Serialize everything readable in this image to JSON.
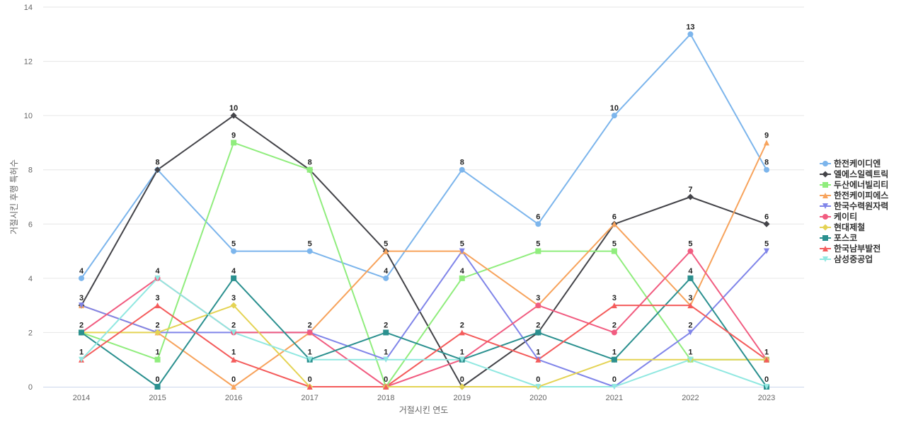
{
  "chart_data": {
    "type": "line",
    "title": "",
    "xlabel": "거절시킨 연도",
    "ylabel": "거절시킨 후행 특허수",
    "ylim": [
      0,
      14
    ],
    "yticks": [
      0,
      2,
      4,
      6,
      8,
      10,
      12,
      14
    ],
    "categories": [
      "2014",
      "2015",
      "2016",
      "2017",
      "2018",
      "2019",
      "2020",
      "2021",
      "2022",
      "2023"
    ],
    "grid": true,
    "legend_position": "right",
    "series": [
      {
        "name": "한전케이디엔",
        "color": "#7cb5ec",
        "marker": "circle",
        "values": [
          4,
          8,
          5,
          5,
          4,
          8,
          6,
          10,
          13,
          8
        ]
      },
      {
        "name": "엘에스일렉트릭",
        "color": "#434348",
        "marker": "diamond",
        "values": [
          3,
          8,
          10,
          8,
          5,
          0,
          2,
          6,
          7,
          6
        ]
      },
      {
        "name": "두산에너빌리티",
        "color": "#90ed7d",
        "marker": "square",
        "values": [
          2,
          1,
          9,
          8,
          0,
          4,
          5,
          5,
          1,
          1
        ]
      },
      {
        "name": "한전케이피에스",
        "color": "#f7a35c",
        "marker": "triangle",
        "values": [
          3,
          2,
          0,
          2,
          5,
          5,
          3,
          6,
          3,
          9
        ]
      },
      {
        "name": "한국수력원자력",
        "color": "#8085e9",
        "marker": "triangle-down",
        "values": [
          3,
          2,
          2,
          2,
          1,
          5,
          1,
          0,
          2,
          5
        ]
      },
      {
        "name": "케이티",
        "color": "#f15c80",
        "marker": "circle",
        "values": [
          2,
          4,
          2,
          2,
          0,
          1,
          3,
          2,
          5,
          1
        ]
      },
      {
        "name": "현대제철",
        "color": "#e4d354",
        "marker": "diamond",
        "values": [
          2,
          2,
          3,
          0,
          0,
          0,
          0,
          1,
          1,
          1
        ]
      },
      {
        "name": "포스코",
        "color": "#2b908f",
        "marker": "square",
        "values": [
          2,
          0,
          4,
          1,
          2,
          1,
          2,
          1,
          4,
          0
        ]
      },
      {
        "name": "한국남부발전",
        "color": "#f45b5b",
        "marker": "triangle",
        "values": [
          1,
          3,
          1,
          0,
          0,
          2,
          1,
          3,
          3,
          1
        ]
      },
      {
        "name": "삼성중공업",
        "color": "#91e8e1",
        "marker": "triangle-down",
        "values": [
          1,
          4,
          2,
          1,
          1,
          1,
          0,
          0,
          1,
          0
        ]
      }
    ],
    "data_labels": [
      {
        "x": "2014",
        "value": 4,
        "text": "4"
      },
      {
        "x": "2014",
        "value": 3,
        "text": "3"
      },
      {
        "x": "2014",
        "value": 2,
        "text": "2"
      },
      {
        "x": "2014",
        "value": 1,
        "text": "1"
      },
      {
        "x": "2015",
        "value": 8,
        "text": "8"
      },
      {
        "x": "2015",
        "value": 4,
        "text": "4"
      },
      {
        "x": "2015",
        "value": 3,
        "text": "3"
      },
      {
        "x": "2015",
        "value": 2,
        "text": "2"
      },
      {
        "x": "2015",
        "value": 1,
        "text": "1"
      },
      {
        "x": "2015",
        "value": 0,
        "text": "0"
      },
      {
        "x": "2016",
        "value": 10,
        "text": "10"
      },
      {
        "x": "2016",
        "value": 9,
        "text": "9"
      },
      {
        "x": "2016",
        "value": 5,
        "text": "5"
      },
      {
        "x": "2016",
        "value": 4,
        "text": "4"
      },
      {
        "x": "2016",
        "value": 3,
        "text": "3"
      },
      {
        "x": "2016",
        "value": 2,
        "text": "2"
      },
      {
        "x": "2016",
        "value": 1,
        "text": "1"
      },
      {
        "x": "2016",
        "value": 0,
        "text": "0"
      },
      {
        "x": "2017",
        "value": 8,
        "text": "8"
      },
      {
        "x": "2017",
        "value": 5,
        "text": "5"
      },
      {
        "x": "2017",
        "value": 2,
        "text": "2"
      },
      {
        "x": "2017",
        "value": 1,
        "text": "1"
      },
      {
        "x": "2017",
        "value": 0,
        "text": "0"
      },
      {
        "x": "2018",
        "value": 5,
        "text": "5"
      },
      {
        "x": "2018",
        "value": 4,
        "text": "4"
      },
      {
        "x": "2018",
        "value": 2,
        "text": "2"
      },
      {
        "x": "2018",
        "value": 1,
        "text": "1"
      },
      {
        "x": "2018",
        "value": 0,
        "text": "0"
      },
      {
        "x": "2019",
        "value": 8,
        "text": "8"
      },
      {
        "x": "2019",
        "value": 5,
        "text": "5"
      },
      {
        "x": "2019",
        "value": 4,
        "text": "4"
      },
      {
        "x": "2019",
        "value": 2,
        "text": "2"
      },
      {
        "x": "2019",
        "value": 1,
        "text": "1"
      },
      {
        "x": "2019",
        "value": 0,
        "text": "0"
      },
      {
        "x": "2020",
        "value": 6,
        "text": "6"
      },
      {
        "x": "2020",
        "value": 5,
        "text": "5"
      },
      {
        "x": "2020",
        "value": 3,
        "text": "3"
      },
      {
        "x": "2020",
        "value": 2,
        "text": "2"
      },
      {
        "x": "2020",
        "value": 1,
        "text": "1"
      },
      {
        "x": "2020",
        "value": 0,
        "text": "0"
      },
      {
        "x": "2021",
        "value": 10,
        "text": "10"
      },
      {
        "x": "2021",
        "value": 6,
        "text": "6"
      },
      {
        "x": "2021",
        "value": 5,
        "text": "5"
      },
      {
        "x": "2021",
        "value": 3,
        "text": "3"
      },
      {
        "x": "2021",
        "value": 2,
        "text": "2"
      },
      {
        "x": "2021",
        "value": 1,
        "text": "1"
      },
      {
        "x": "2021",
        "value": 0,
        "text": "0"
      },
      {
        "x": "2022",
        "value": 13,
        "text": "13"
      },
      {
        "x": "2022",
        "value": 7,
        "text": "7"
      },
      {
        "x": "2022",
        "value": 5,
        "text": "5"
      },
      {
        "x": "2022",
        "value": 4,
        "text": "4"
      },
      {
        "x": "2022",
        "value": 3,
        "text": "3"
      },
      {
        "x": "2022",
        "value": 2,
        "text": "2"
      },
      {
        "x": "2022",
        "value": 1,
        "text": "1"
      },
      {
        "x": "2023",
        "value": 9,
        "text": "9"
      },
      {
        "x": "2023",
        "value": 8,
        "text": "8"
      },
      {
        "x": "2023",
        "value": 6,
        "text": "6"
      },
      {
        "x": "2023",
        "value": 5,
        "text": "5"
      },
      {
        "x": "2023",
        "value": 1,
        "text": "1"
      },
      {
        "x": "2023",
        "value": 0,
        "text": "0"
      }
    ]
  }
}
